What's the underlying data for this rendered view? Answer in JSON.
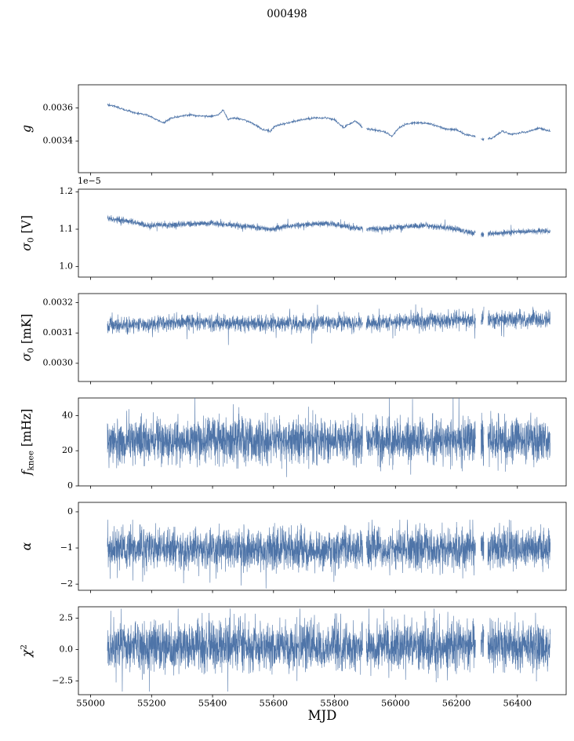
{
  "figure": {
    "background": "#ffffff",
    "line_color": "#4e74a8",
    "axis_color": "#000000"
  },
  "chart_data": {
    "type": "line",
    "title": "000498",
    "xlabel": "MJD",
    "xlim": [
      54960,
      56560
    ],
    "xticks": [
      55000,
      55200,
      55400,
      55600,
      55800,
      56000,
      56200,
      56400
    ],
    "x_start": 55055,
    "x_end": 56508,
    "gaps": [
      [
        55893,
        55904
      ],
      [
        56263,
        56280
      ],
      [
        56290,
        56303
      ]
    ],
    "legend": "none",
    "grid": false,
    "panels": [
      {
        "name": "gain",
        "ylabel": "g",
        "label_parts": [
          {
            "t": "g",
            "i": 1
          }
        ],
        "ylim": [
          0.00321,
          0.00374
        ],
        "yticks": [
          0.0034,
          0.0036
        ],
        "ytick_labels": [
          "0.0034",
          "0.0036"
        ],
        "offset_text": "",
        "trend": {
          "x": [
            55058,
            55080,
            55110,
            55150,
            55185,
            55215,
            55240,
            55265,
            55295,
            55330,
            55360,
            55395,
            55420,
            55435,
            55450,
            55470,
            55500,
            55530,
            55565,
            55590,
            55605,
            55625,
            55650,
            55690,
            55730,
            55770,
            55800,
            55830,
            55845,
            55870,
            55895,
            55920,
            55960,
            55990,
            56010,
            56030,
            56060,
            56100,
            56140,
            56170,
            56200,
            56230,
            56260,
            56290,
            56320,
            56350,
            56380,
            56410,
            56440,
            56470,
            56505
          ],
          "y": [
            0.00362,
            0.00361,
            0.00359,
            0.00357,
            0.00356,
            0.00353,
            0.00351,
            0.00354,
            0.00355,
            0.00356,
            0.00355,
            0.00355,
            0.00356,
            0.00359,
            0.00353,
            0.00354,
            0.00353,
            0.00351,
            0.00347,
            0.00346,
            0.00349,
            0.0035,
            0.00351,
            0.00353,
            0.00354,
            0.00354,
            0.00353,
            0.00348,
            0.0035,
            0.00352,
            0.00348,
            0.00347,
            0.00346,
            0.00343,
            0.00348,
            0.0035,
            0.00351,
            0.00351,
            0.00349,
            0.00347,
            0.00347,
            0.00344,
            0.00343,
            0.00341,
            0.00342,
            0.00346,
            0.00344,
            0.00345,
            0.00346,
            0.00348,
            0.00346
          ]
        },
        "noise_sigma": 3e-06,
        "spike_prob": 0,
        "spike_mult": 1,
        "clamp": [
          0.00322,
          0.00373
        ],
        "points": 1400,
        "seed": 101,
        "line_width": 0.8
      },
      {
        "name": "sigma0_volts",
        "ylabel": "σ0 [V]",
        "label_parts": [
          {
            "t": "σ",
            "i": 1
          },
          {
            "t": "0",
            "sub": 1
          },
          {
            "t": " [V]"
          }
        ],
        "ylim": [
          0.972,
          1.207
        ],
        "yticks": [
          1.0,
          1.1,
          1.2
        ],
        "ytick_labels": [
          "1.0",
          "1.1",
          "1.2"
        ],
        "offset_text": "1e−5",
        "trend": {
          "x": [
            55058,
            55100,
            55150,
            55190,
            55220,
            55260,
            55300,
            55350,
            55400,
            55450,
            55500,
            55550,
            55600,
            55640,
            55700,
            55750,
            55800,
            55850,
            55900,
            55950,
            56000,
            56050,
            56100,
            56150,
            56200,
            56240,
            56280,
            56320,
            56360,
            56400,
            56450,
            56505
          ],
          "y": [
            1.128,
            1.125,
            1.118,
            1.108,
            1.112,
            1.11,
            1.113,
            1.115,
            1.116,
            1.112,
            1.108,
            1.104,
            1.1,
            1.108,
            1.112,
            1.115,
            1.113,
            1.106,
            1.1,
            1.1,
            1.104,
            1.109,
            1.11,
            1.105,
            1.1,
            1.092,
            1.086,
            1.088,
            1.091,
            1.093,
            1.095,
            1.095
          ]
        },
        "noise_sigma": 0.0035,
        "spike_prob": 0.04,
        "spike_mult": 2.2,
        "clamp": [
          0.99,
          1.2
        ],
        "points": 2600,
        "seed": 102,
        "line_width": 0.6
      },
      {
        "name": "sigma0_mK",
        "ylabel": "σ0 [mK]",
        "label_parts": [
          {
            "t": "σ",
            "i": 1
          },
          {
            "t": "0",
            "sub": 1
          },
          {
            "t": " [mK]"
          }
        ],
        "ylim": [
          0.00294,
          0.00323
        ],
        "yticks": [
          0.003,
          0.0031,
          0.0032
        ],
        "ytick_labels": [
          "0.0030",
          "0.0031",
          "0.0032"
        ],
        "offset_text": "",
        "trend": {
          "x": [
            55058,
            55300,
            55600,
            55900,
            56100,
            56300,
            56505
          ],
          "y": [
            0.003125,
            0.003135,
            0.00313,
            0.003135,
            0.00314,
            0.003145,
            0.003145
          ]
        },
        "noise_sigma": 1.3e-05,
        "spike_prob": 0.05,
        "spike_mult": 2.2,
        "clamp": [
          0.00297,
          0.00322
        ],
        "points": 2600,
        "seed": 103,
        "line_width": 0.6
      },
      {
        "name": "f_knee",
        "ylabel": "f_knee [mHz]",
        "label_parts": [
          {
            "t": "f",
            "i": 1
          },
          {
            "t": "knee",
            "sub": 1
          },
          {
            "t": " [mHz]"
          }
        ],
        "ylim": [
          0,
          50
        ],
        "yticks": [
          0,
          20,
          40
        ],
        "ytick_labels": [
          "0",
          "20",
          "40"
        ],
        "offset_text": "",
        "trend": {
          "x": [
            55058,
            56505
          ],
          "y": [
            26,
            26
          ]
        },
        "noise_sigma": 6,
        "spike_prob": 0.06,
        "spike_mult": 1.7,
        "clamp": [
          5,
          54
        ],
        "points": 3000,
        "seed": 104,
        "line_width": 0.6
      },
      {
        "name": "alpha",
        "ylabel": "α",
        "label_parts": [
          {
            "t": "α",
            "i": 1
          }
        ],
        "ylim": [
          -2.17,
          0.26
        ],
        "yticks": [
          -2,
          -1,
          0
        ],
        "ytick_labels": [
          "−2",
          "−1",
          "0"
        ],
        "offset_text": "",
        "trend": {
          "x": [
            55058,
            56505
          ],
          "y": [
            -1.03,
            -1.03
          ]
        },
        "noise_sigma": 0.27,
        "spike_prob": 0.05,
        "spike_mult": 1.7,
        "clamp": [
          -2.12,
          -0.22
        ],
        "points": 3000,
        "seed": 105,
        "line_width": 0.6
      },
      {
        "name": "chi2",
        "ylabel": "χ2",
        "label_parts": [
          {
            "t": "χ",
            "i": 1
          },
          {
            "t": "2",
            "sup": 1
          }
        ],
        "ylim": [
          -3.6,
          3.4
        ],
        "yticks": [
          -2.5,
          0.0,
          2.5
        ],
        "ytick_labels": [
          "−2.5",
          "0.0",
          "2.5"
        ],
        "offset_text": "",
        "trend": {
          "x": [
            55058,
            56505
          ],
          "y": [
            0.25,
            0.25
          ]
        },
        "noise_sigma": 0.95,
        "spike_prob": 0.05,
        "spike_mult": 1.6,
        "clamp": [
          -3.35,
          3.25
        ],
        "points": 3000,
        "seed": 106,
        "line_width": 0.6
      }
    ]
  }
}
